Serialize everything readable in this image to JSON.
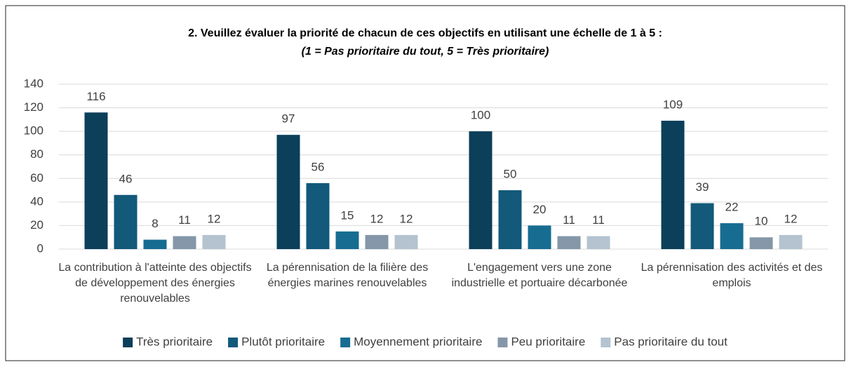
{
  "chart_data": {
    "type": "bar",
    "title": "2. Veuillez évaluer la priorité de chacun de ces objectifs en utilisant une échelle de 1 à 5 :",
    "subtitle": "(1 = Pas prioritaire du tout, 5 = Très prioritaire)",
    "categories": [
      "La contribution à l'atteinte des objectifs de développement des énergies renouvelables",
      "La pérennisation de la filière des énergies marines renouvelables",
      "L'engagement vers une zone industrielle et portuaire décarbonée",
      "La pérennisation des activités et des emplois"
    ],
    "series": [
      {
        "name": "Très prioritaire",
        "color": "#0b3f5a",
        "values": [
          116,
          97,
          100,
          109
        ]
      },
      {
        "name": "Plutôt prioritaire",
        "color": "#12597a",
        "values": [
          46,
          56,
          50,
          39
        ]
      },
      {
        "name": "Moyennement prioritaire",
        "color": "#166d91",
        "values": [
          8,
          15,
          20,
          22
        ]
      },
      {
        "name": "Peu prioritaire",
        "color": "#8497a8",
        "values": [
          11,
          12,
          11,
          10
        ]
      },
      {
        "name": "Pas prioritaire du tout",
        "color": "#b4c3cf",
        "values": [
          12,
          12,
          11,
          12
        ]
      }
    ],
    "ylim": [
      0,
      140
    ],
    "yticks": [
      0,
      20,
      40,
      60,
      80,
      100,
      120,
      140
    ],
    "grid": true,
    "legend": "bottom"
  }
}
